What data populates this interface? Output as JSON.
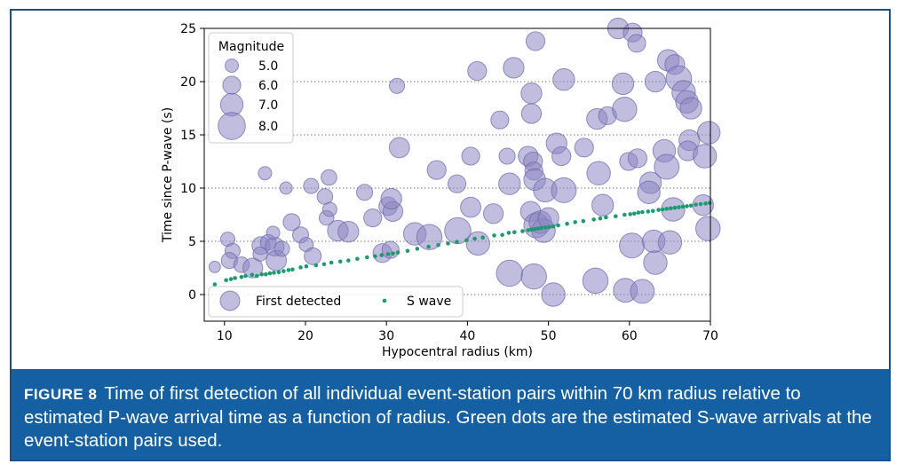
{
  "caption": {
    "label": "FIGURE 8",
    "text": "Time of first detection of all individual event-station pairs within 70 km radius relative to estimated P-wave arrival time as a function of radius. Green dots are the estimated S-wave arrivals at the event-station pairs used."
  },
  "colors": {
    "bubble": "#8c87c2",
    "bubble_edge": "#6b66a8",
    "swave": "#1f9a6f",
    "caption_bg": "#1560a3"
  },
  "chart_data": {
    "type": "scatter",
    "xlabel": "Hypocentral radius (km)",
    "ylabel": "Time since P-wave (s)",
    "xlim": [
      7.5,
      70
    ],
    "ylim": [
      -2.5,
      25
    ],
    "xticks": [
      10,
      20,
      30,
      40,
      50,
      60,
      70
    ],
    "yticks": [
      0,
      5,
      10,
      15,
      20,
      25
    ],
    "grid": "horizontal dotted",
    "size_legend": {
      "title": "Magnitude",
      "placement": "top-left",
      "entries": [
        {
          "label": "5.0",
          "mag": 5.0
        },
        {
          "label": "6.0",
          "mag": 6.0
        },
        {
          "label": "7.0",
          "mag": 7.0
        },
        {
          "label": "8.0",
          "mag": 8.0
        }
      ]
    },
    "series_legend": {
      "placement": "bottom",
      "entries": [
        {
          "label": "First detected",
          "marker": "bubble"
        },
        {
          "label": "S wave",
          "marker": "dot"
        }
      ]
    },
    "series": [
      {
        "name": "First detected",
        "points": [
          {
            "x": 8.8,
            "y": 2.6,
            "m": 4.6
          },
          {
            "x": 10.4,
            "y": 5.2,
            "m": 5.2
          },
          {
            "x": 11.0,
            "y": 4.1,
            "m": 5.4
          },
          {
            "x": 10.6,
            "y": 3.2,
            "m": 5.6
          },
          {
            "x": 12.1,
            "y": 2.8,
            "m": 5.5
          },
          {
            "x": 13.5,
            "y": 2.5,
            "m": 6.4
          },
          {
            "x": 14.5,
            "y": 4.6,
            "m": 6.0
          },
          {
            "x": 15.0,
            "y": 11.4,
            "m": 5.0
          },
          {
            "x": 14.4,
            "y": 3.8,
            "m": 5.2
          },
          {
            "x": 15.4,
            "y": 4.9,
            "m": 5.5
          },
          {
            "x": 16.2,
            "y": 4.5,
            "m": 6.2
          },
          {
            "x": 16.4,
            "y": 3.2,
            "m": 6.5
          },
          {
            "x": 17.1,
            "y": 4.3,
            "m": 5.4
          },
          {
            "x": 16.0,
            "y": 5.8,
            "m": 5.0
          },
          {
            "x": 17.6,
            "y": 10.0,
            "m": 4.8
          },
          {
            "x": 18.3,
            "y": 6.8,
            "m": 5.8
          },
          {
            "x": 19.4,
            "y": 5.6,
            "m": 5.6
          },
          {
            "x": 20.1,
            "y": 4.7,
            "m": 5.2
          },
          {
            "x": 20.7,
            "y": 10.2,
            "m": 5.4
          },
          {
            "x": 20.9,
            "y": 3.6,
            "m": 5.8
          },
          {
            "x": 22.4,
            "y": 9.2,
            "m": 5.5
          },
          {
            "x": 22.6,
            "y": 7.2,
            "m": 5.3
          },
          {
            "x": 22.9,
            "y": 11.0,
            "m": 5.5
          },
          {
            "x": 23.0,
            "y": 8.0,
            "m": 5.2
          },
          {
            "x": 24.0,
            "y": 6.0,
            "m": 6.6
          },
          {
            "x": 25.3,
            "y": 5.9,
            "m": 6.6
          },
          {
            "x": 27.3,
            "y": 9.6,
            "m": 5.6
          },
          {
            "x": 28.3,
            "y": 7.2,
            "m": 6.0
          },
          {
            "x": 29.5,
            "y": 3.9,
            "m": 6.2
          },
          {
            "x": 30.2,
            "y": 8.3,
            "m": 6.1
          },
          {
            "x": 30.5,
            "y": 4.2,
            "m": 5.8
          },
          {
            "x": 30.8,
            "y": 7.8,
            "m": 6.4
          },
          {
            "x": 30.6,
            "y": 9.0,
            "m": 6.6
          },
          {
            "x": 31.3,
            "y": 19.6,
            "m": 5.4
          },
          {
            "x": 31.6,
            "y": 13.8,
            "m": 6.5
          },
          {
            "x": 33.5,
            "y": 5.7,
            "m": 7.0
          },
          {
            "x": 35.3,
            "y": 5.4,
            "m": 7.6
          },
          {
            "x": 36.2,
            "y": 11.7,
            "m": 6.2
          },
          {
            "x": 38.7,
            "y": 10.4,
            "m": 6.0
          },
          {
            "x": 38.8,
            "y": 6.0,
            "m": 7.8
          },
          {
            "x": 40.4,
            "y": 13.0,
            "m": 6.0
          },
          {
            "x": 40.4,
            "y": 8.2,
            "m": 6.5
          },
          {
            "x": 41.2,
            "y": 21.0,
            "m": 6.2
          },
          {
            "x": 41.3,
            "y": 4.8,
            "m": 7.2
          },
          {
            "x": 43.2,
            "y": 7.6,
            "m": 6.4
          },
          {
            "x": 44.0,
            "y": 16.4,
            "m": 6.0
          },
          {
            "x": 44.9,
            "y": 13.0,
            "m": 5.6
          },
          {
            "x": 45.2,
            "y": 10.4,
            "m": 6.8
          },
          {
            "x": 45.2,
            "y": 2.0,
            "m": 7.8
          },
          {
            "x": 45.7,
            "y": 21.3,
            "m": 6.6
          },
          {
            "x": 47.5,
            "y": 13.0,
            "m": 6.4
          },
          {
            "x": 47.9,
            "y": 17.0,
            "m": 6.4
          },
          {
            "x": 47.9,
            "y": 18.9,
            "m": 6.6
          },
          {
            "x": 47.8,
            "y": 7.8,
            "m": 6.5
          },
          {
            "x": 48.1,
            "y": 12.5,
            "m": 6.2
          },
          {
            "x": 48.4,
            "y": 23.8,
            "m": 6.2
          },
          {
            "x": 48.2,
            "y": 11.6,
            "m": 6.0
          },
          {
            "x": 48.3,
            "y": 10.8,
            "m": 6.8
          },
          {
            "x": 48.5,
            "y": 6.5,
            "m": 7.5
          },
          {
            "x": 48.2,
            "y": 1.7,
            "m": 7.6
          },
          {
            "x": 49.0,
            "y": 6.8,
            "m": 7.0
          },
          {
            "x": 49.6,
            "y": 9.8,
            "m": 7.2
          },
          {
            "x": 49.4,
            "y": 6.0,
            "m": 7.2
          },
          {
            "x": 50.0,
            "y": 7.2,
            "m": 6.6
          },
          {
            "x": 50.6,
            "y": 0.0,
            "m": 7.2
          },
          {
            "x": 51.0,
            "y": 14.2,
            "m": 6.6
          },
          {
            "x": 51.6,
            "y": 13.0,
            "m": 6.2
          },
          {
            "x": 51.9,
            "y": 20.2,
            "m": 6.8
          },
          {
            "x": 51.9,
            "y": 9.8,
            "m": 7.5
          },
          {
            "x": 54.4,
            "y": 13.8,
            "m": 6.2
          },
          {
            "x": 55.8,
            "y": 1.3,
            "m": 7.6
          },
          {
            "x": 56.0,
            "y": 16.5,
            "m": 6.6
          },
          {
            "x": 56.2,
            "y": 11.4,
            "m": 7.2
          },
          {
            "x": 56.7,
            "y": 8.4,
            "m": 6.8
          },
          {
            "x": 57.3,
            "y": 16.8,
            "m": 6.0
          },
          {
            "x": 58.6,
            "y": 25.0,
            "m": 6.6
          },
          {
            "x": 59.2,
            "y": 19.8,
            "m": 6.8
          },
          {
            "x": 59.4,
            "y": 17.4,
            "m": 7.4
          },
          {
            "x": 59.5,
            "y": 0.4,
            "m": 7.3
          },
          {
            "x": 59.9,
            "y": 12.5,
            "m": 6.0
          },
          {
            "x": 60.3,
            "y": 4.6,
            "m": 7.5
          },
          {
            "x": 60.4,
            "y": 24.6,
            "m": 6.2
          },
          {
            "x": 60.9,
            "y": 23.6,
            "m": 6.0
          },
          {
            "x": 61.0,
            "y": 12.8,
            "m": 6.2
          },
          {
            "x": 61.6,
            "y": 0.3,
            "m": 7.3
          },
          {
            "x": 62.6,
            "y": 10.5,
            "m": 6.8
          },
          {
            "x": 62.4,
            "y": 9.6,
            "m": 7.0
          },
          {
            "x": 63.0,
            "y": 5.0,
            "m": 7.0
          },
          {
            "x": 63.2,
            "y": 20.0,
            "m": 6.6
          },
          {
            "x": 63.2,
            "y": 3.0,
            "m": 7.2
          },
          {
            "x": 64.3,
            "y": 13.5,
            "m": 7.0
          },
          {
            "x": 64.6,
            "y": 12.0,
            "m": 7.5
          },
          {
            "x": 64.8,
            "y": 22.0,
            "m": 6.8
          },
          {
            "x": 65.0,
            "y": 4.9,
            "m": 7.2
          },
          {
            "x": 65.4,
            "y": 8.0,
            "m": 7.2
          },
          {
            "x": 65.6,
            "y": 21.6,
            "m": 6.4
          },
          {
            "x": 66.1,
            "y": 20.3,
            "m": 7.6
          },
          {
            "x": 66.7,
            "y": 19.0,
            "m": 7.2
          },
          {
            "x": 67.1,
            "y": 18.1,
            "m": 7.0
          },
          {
            "x": 67.4,
            "y": 14.5,
            "m": 6.6
          },
          {
            "x": 67.6,
            "y": 17.5,
            "m": 6.8
          },
          {
            "x": 67.2,
            "y": 13.5,
            "m": 6.4
          },
          {
            "x": 69.1,
            "y": 8.4,
            "m": 6.6
          },
          {
            "x": 69.3,
            "y": 13.0,
            "m": 7.2
          },
          {
            "x": 69.8,
            "y": 15.2,
            "m": 7.0
          },
          {
            "x": 69.7,
            "y": 6.2,
            "m": 7.4
          }
        ]
      },
      {
        "name": "S wave",
        "x": [
          8.8,
          10.2,
          10.8,
          11.3,
          12.1,
          12.6,
          13.4,
          14.0,
          14.6,
          15.1,
          15.6,
          16.1,
          16.7,
          17.3,
          17.9,
          18.4,
          19.4,
          20.1,
          21.3,
          22.3,
          23.2,
          24.3,
          25.3,
          26.4,
          27.6,
          28.6,
          29.4,
          30.2,
          30.8,
          31.4,
          32.6,
          33.8,
          35.2,
          36.4,
          37.6,
          38.7,
          39.9,
          40.9,
          41.9,
          43.3,
          44.3,
          45.1,
          45.8,
          46.8,
          47.5,
          47.9,
          48.3,
          48.7,
          49.1,
          49.6,
          50.1,
          50.6,
          51.2,
          52.3,
          53.3,
          54.3,
          55.6,
          56.4,
          57.1,
          58.3,
          59.4,
          60.1,
          60.6,
          61.1,
          61.6,
          62.3,
          62.9,
          63.6,
          64.1,
          64.6,
          65.1,
          65.6,
          66.1,
          66.6,
          67.1,
          67.6,
          68.2,
          68.8,
          69.4,
          69.9
        ],
        "y": [
          0.95,
          1.35,
          1.45,
          1.55,
          1.65,
          1.75,
          1.85,
          1.75,
          1.9,
          1.9,
          2.0,
          2.05,
          2.1,
          2.2,
          2.3,
          2.35,
          2.55,
          2.65,
          2.75,
          2.85,
          3.0,
          3.1,
          3.2,
          3.35,
          3.5,
          3.6,
          3.7,
          3.8,
          3.85,
          3.95,
          4.1,
          4.3,
          4.5,
          4.65,
          4.8,
          4.95,
          5.1,
          5.25,
          5.35,
          5.55,
          5.6,
          5.8,
          5.85,
          5.95,
          6.05,
          6.1,
          6.15,
          6.2,
          6.25,
          6.3,
          6.35,
          6.4,
          6.5,
          6.65,
          6.8,
          6.9,
          7.05,
          7.15,
          7.25,
          7.35,
          7.5,
          7.55,
          7.6,
          7.7,
          7.75,
          7.8,
          7.85,
          7.95,
          8.0,
          8.05,
          8.1,
          8.15,
          8.2,
          8.25,
          8.3,
          8.35,
          8.45,
          8.5,
          8.55,
          8.6
        ]
      }
    ]
  }
}
